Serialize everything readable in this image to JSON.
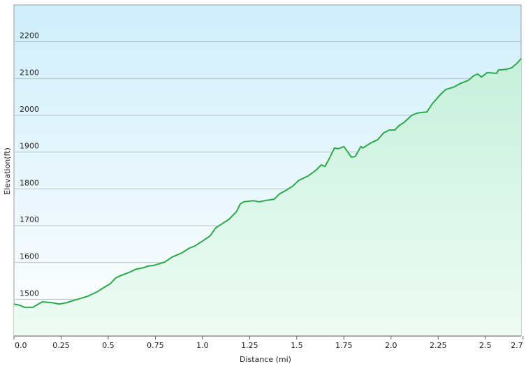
{
  "chart_data": {
    "type": "area",
    "x_label": "Distance (mi)",
    "y_label": "Elevation(ft)",
    "color": "#2aa84a",
    "x": [
      0,
      0.03,
      0.056,
      0.1,
      0.15,
      0.2,
      0.24,
      0.28,
      0.33,
      0.39,
      0.44,
      0.48,
      0.51,
      0.54,
      0.56,
      0.61,
      0.65,
      0.69,
      0.71,
      0.74,
      0.8,
      0.84,
      0.89,
      0.93,
      0.96,
      1.0,
      1.04,
      1.07,
      1.1,
      1.14,
      1.18,
      1.2,
      1.22,
      1.27,
      1.3,
      1.33,
      1.38,
      1.41,
      1.44,
      1.48,
      1.51,
      1.56,
      1.6,
      1.63,
      1.65,
      1.67,
      1.7,
      1.72,
      1.75,
      1.79,
      1.81,
      1.84,
      1.85,
      1.89,
      1.93,
      1.96,
      1.99,
      2.02,
      2.04,
      2.07,
      2.11,
      2.14,
      2.17,
      2.19,
      2.22,
      2.26,
      2.29,
      2.33,
      2.37,
      2.41,
      2.44,
      2.46,
      2.48,
      2.51,
      2.56,
      2.57,
      2.61,
      2.64,
      2.67,
      2.69
    ],
    "values": [
      1487,
      1484,
      1478,
      1478,
      1493,
      1491,
      1487,
      1491,
      1499,
      1508,
      1520,
      1533,
      1542,
      1558,
      1563,
      1573,
      1582,
      1586,
      1590,
      1592,
      1601,
      1615,
      1626,
      1639,
      1645,
      1658,
      1672,
      1694,
      1704,
      1717,
      1738,
      1759,
      1765,
      1768,
      1765,
      1768,
      1772,
      1787,
      1795,
      1808,
      1823,
      1835,
      1850,
      1865,
      1861,
      1880,
      1911,
      1909,
      1915,
      1886,
      1888,
      1915,
      1911,
      1924,
      1934,
      1952,
      1960,
      1960,
      1971,
      1981,
      2000,
      2006,
      2008,
      2009,
      2032,
      2055,
      2070,
      2076,
      2087,
      2095,
      2108,
      2112,
      2104,
      2116,
      2114,
      2123,
      2125,
      2129,
      2142,
      2154
    ],
    "xlim": [
      0,
      2.69
    ],
    "ylim": [
      1400,
      2300
    ],
    "xticks": [
      {
        "value": 0,
        "label": "0.0"
      },
      0.25,
      0.5,
      0.75,
      {
        "value": 1,
        "label": "1.0"
      },
      1.25,
      1.5,
      1.75,
      {
        "value": 2,
        "label": "2.0"
      },
      2.25,
      2.5,
      2.7
    ],
    "yticks": [
      1500,
      1600,
      1700,
      1800,
      1900,
      2000,
      2100,
      2200
    ],
    "grid": true
  }
}
